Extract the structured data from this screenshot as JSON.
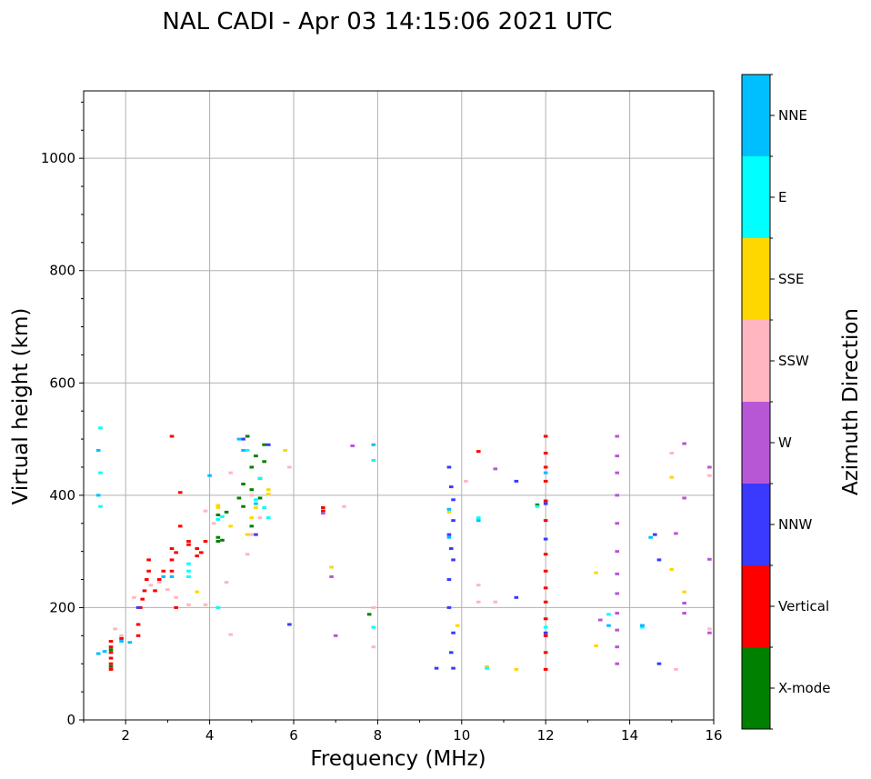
{
  "chart_data": {
    "type": "scatter",
    "title": "NAL CADI - Apr 03 14:15:06 2021 UTC",
    "xlabel": "Frequency (MHz)",
    "ylabel": "Virtual height (km)",
    "xlim": [
      1,
      16
    ],
    "ylim": [
      0,
      1120
    ],
    "xticks": [
      2,
      4,
      6,
      8,
      10,
      12,
      14,
      16
    ],
    "yticks": [
      0,
      200,
      400,
      600,
      800,
      1000
    ],
    "grid": true,
    "colorbar": {
      "label": "Azimuth Direction",
      "categories": [
        {
          "name": "X-mode",
          "color": "#008000"
        },
        {
          "name": "Vertical",
          "color": "#ff0000"
        },
        {
          "name": "NNW",
          "color": "#3a3aff"
        },
        {
          "name": "W",
          "color": "#b857d6"
        },
        {
          "name": "SSW",
          "color": "#ffb6c1"
        },
        {
          "name": "SSE",
          "color": "#ffd700"
        },
        {
          "name": "E",
          "color": "#00ffff"
        },
        {
          "name": "NNE",
          "color": "#00bfff"
        }
      ]
    },
    "series": [
      {
        "name": "Vertical",
        "points": [
          [
            1.65,
            90
          ],
          [
            1.65,
            100
          ],
          [
            1.65,
            110
          ],
          [
            1.65,
            120
          ],
          [
            1.65,
            130
          ],
          [
            1.65,
            140
          ],
          [
            1.9,
            145
          ],
          [
            2.3,
            150
          ],
          [
            2.3,
            170
          ],
          [
            2.35,
            200
          ],
          [
            2.4,
            215
          ],
          [
            2.45,
            230
          ],
          [
            2.5,
            250
          ],
          [
            2.55,
            265
          ],
          [
            2.55,
            285
          ],
          [
            2.7,
            230
          ],
          [
            2.8,
            250
          ],
          [
            2.9,
            265
          ],
          [
            3.1,
            265
          ],
          [
            3.1,
            285
          ],
          [
            3.1,
            305
          ],
          [
            3.2,
            298
          ],
          [
            3.5,
            312
          ],
          [
            3.5,
            318
          ],
          [
            3.7,
            305
          ],
          [
            3.7,
            292
          ],
          [
            3.8,
            298
          ],
          [
            3.9,
            318
          ],
          [
            3.3,
            345
          ],
          [
            3.3,
            405
          ],
          [
            3.1,
            505
          ],
          [
            3.2,
            200
          ],
          [
            6.7,
            378
          ],
          [
            6.7,
            372
          ],
          [
            12.0,
            505
          ],
          [
            12.0,
            475
          ],
          [
            12.0,
            450
          ],
          [
            12.0,
            425
          ],
          [
            12.0,
            390
          ],
          [
            12.0,
            355
          ],
          [
            12.0,
            295
          ],
          [
            12.0,
            265
          ],
          [
            12.0,
            235
          ],
          [
            12.0,
            210
          ],
          [
            12.0,
            180
          ],
          [
            12.0,
            150
          ],
          [
            12.0,
            120
          ],
          [
            12.0,
            90
          ],
          [
            10.4,
            478
          ]
        ]
      },
      {
        "name": "X-mode",
        "points": [
          [
            1.65,
            95
          ],
          [
            1.65,
            125
          ],
          [
            4.2,
            325
          ],
          [
            4.2,
            318
          ],
          [
            4.3,
            320
          ],
          [
            4.9,
            505
          ],
          [
            5.0,
            450
          ],
          [
            5.0,
            410
          ],
          [
            5.1,
            470
          ],
          [
            5.2,
            430
          ],
          [
            5.3,
            460
          ],
          [
            5.3,
            490
          ],
          [
            4.8,
            380
          ],
          [
            4.2,
            365
          ],
          [
            4.4,
            370
          ],
          [
            4.8,
            420
          ],
          [
            4.7,
            395
          ],
          [
            5.0,
            345
          ],
          [
            5.2,
            395
          ],
          [
            7.8,
            188
          ],
          [
            11.8,
            383
          ]
        ]
      },
      {
        "name": "NNW",
        "points": [
          [
            2.3,
            200
          ],
          [
            4.8,
            500
          ],
          [
            5.1,
            330
          ],
          [
            5.4,
            490
          ],
          [
            5.9,
            170
          ],
          [
            9.4,
            92
          ],
          [
            9.7,
            450
          ],
          [
            9.75,
            415
          ],
          [
            9.8,
            392
          ],
          [
            9.8,
            355
          ],
          [
            9.7,
            330
          ],
          [
            9.75,
            305
          ],
          [
            9.8,
            285
          ],
          [
            9.7,
            250
          ],
          [
            9.7,
            200
          ],
          [
            9.8,
            155
          ],
          [
            9.75,
            120
          ],
          [
            9.8,
            92
          ],
          [
            11.3,
            425
          ],
          [
            11.3,
            218
          ],
          [
            12.0,
            385
          ],
          [
            12.0,
            322
          ],
          [
            12.0,
            155
          ],
          [
            14.3,
            168
          ],
          [
            14.6,
            330
          ],
          [
            14.7,
            285
          ],
          [
            14.7,
            100
          ]
        ]
      },
      {
        "name": "W",
        "points": [
          [
            6.7,
            368
          ],
          [
            6.9,
            255
          ],
          [
            7.0,
            150
          ],
          [
            7.4,
            488
          ],
          [
            10.8,
            447
          ],
          [
            13.3,
            178
          ],
          [
            13.7,
            505
          ],
          [
            13.7,
            470
          ],
          [
            13.7,
            440
          ],
          [
            13.7,
            400
          ],
          [
            13.7,
            350
          ],
          [
            13.7,
            300
          ],
          [
            13.7,
            260
          ],
          [
            13.7,
            225
          ],
          [
            13.7,
            190
          ],
          [
            13.7,
            160
          ],
          [
            13.7,
            130
          ],
          [
            13.7,
            100
          ],
          [
            15.3,
            492
          ],
          [
            15.3,
            395
          ],
          [
            15.3,
            208
          ],
          [
            15.3,
            190
          ],
          [
            15.9,
            450
          ],
          [
            15.9,
            286
          ],
          [
            15.9,
            155
          ],
          [
            15.1,
            332
          ]
        ]
      },
      {
        "name": "SSW",
        "points": [
          [
            1.75,
            162
          ],
          [
            1.9,
            150
          ],
          [
            2.2,
            218
          ],
          [
            2.6,
            240
          ],
          [
            2.8,
            245
          ],
          [
            3.0,
            232
          ],
          [
            3.2,
            218
          ],
          [
            3.5,
            205
          ],
          [
            3.9,
            205
          ],
          [
            3.9,
            372
          ],
          [
            4.1,
            350
          ],
          [
            4.5,
            440
          ],
          [
            4.5,
            152
          ],
          [
            4.4,
            245
          ],
          [
            4.9,
            295
          ],
          [
            5.2,
            360
          ],
          [
            5.0,
            330
          ],
          [
            5.0,
            400
          ],
          [
            5.9,
            450
          ],
          [
            7.2,
            380
          ],
          [
            7.9,
            200
          ],
          [
            7.9,
            130
          ],
          [
            10.1,
            425
          ],
          [
            10.4,
            210
          ],
          [
            10.8,
            210
          ],
          [
            10.4,
            240
          ],
          [
            15.0,
            475
          ],
          [
            15.1,
            90
          ],
          [
            15.9,
            435
          ],
          [
            15.9,
            162
          ]
        ]
      },
      {
        "name": "SSE",
        "points": [
          [
            3.7,
            228
          ],
          [
            4.2,
            382
          ],
          [
            4.2,
            378
          ],
          [
            4.5,
            345
          ],
          [
            4.9,
            330
          ],
          [
            5.0,
            360
          ],
          [
            5.4,
            410
          ],
          [
            5.4,
            402
          ],
          [
            5.1,
            378
          ],
          [
            5.8,
            480
          ],
          [
            6.9,
            272
          ],
          [
            9.7,
            370
          ],
          [
            10.6,
            95
          ],
          [
            11.3,
            90
          ],
          [
            13.2,
            262
          ],
          [
            13.2,
            132
          ],
          [
            15.0,
            432
          ],
          [
            15.0,
            268
          ],
          [
            15.3,
            228
          ],
          [
            9.9,
            168
          ]
        ]
      },
      {
        "name": "E",
        "points": [
          [
            4.2,
            200
          ],
          [
            4.2,
            357
          ],
          [
            4.3,
            362
          ],
          [
            3.5,
            278
          ],
          [
            3.5,
            265
          ],
          [
            3.5,
            255
          ],
          [
            4.9,
            480
          ],
          [
            5.4,
            360
          ],
          [
            5.3,
            378
          ],
          [
            5.2,
            430
          ],
          [
            5.1,
            392
          ],
          [
            7.9,
            462
          ],
          [
            7.9,
            165
          ],
          [
            10.4,
            360
          ],
          [
            10.6,
            92
          ],
          [
            11.8,
            380
          ],
          [
            12.0,
            165
          ],
          [
            13.5,
            188
          ],
          [
            14.3,
            165
          ],
          [
            1.4,
            440
          ],
          [
            1.4,
            380
          ],
          [
            1.4,
            520
          ]
        ]
      },
      {
        "name": "NNE",
        "points": [
          [
            1.35,
            118
          ],
          [
            1.5,
            122
          ],
          [
            1.9,
            140
          ],
          [
            2.1,
            138
          ],
          [
            2.9,
            255
          ],
          [
            3.1,
            255
          ],
          [
            4.0,
            435
          ],
          [
            4.7,
            500
          ],
          [
            4.8,
            480
          ],
          [
            5.1,
            385
          ],
          [
            7.9,
            490
          ],
          [
            9.7,
            375
          ],
          [
            9.7,
            325
          ],
          [
            10.4,
            355
          ],
          [
            12.0,
            440
          ],
          [
            13.5,
            168
          ],
          [
            14.5,
            325
          ],
          [
            14.3,
            168
          ],
          [
            1.35,
            480
          ],
          [
            1.35,
            400
          ]
        ]
      }
    ]
  }
}
